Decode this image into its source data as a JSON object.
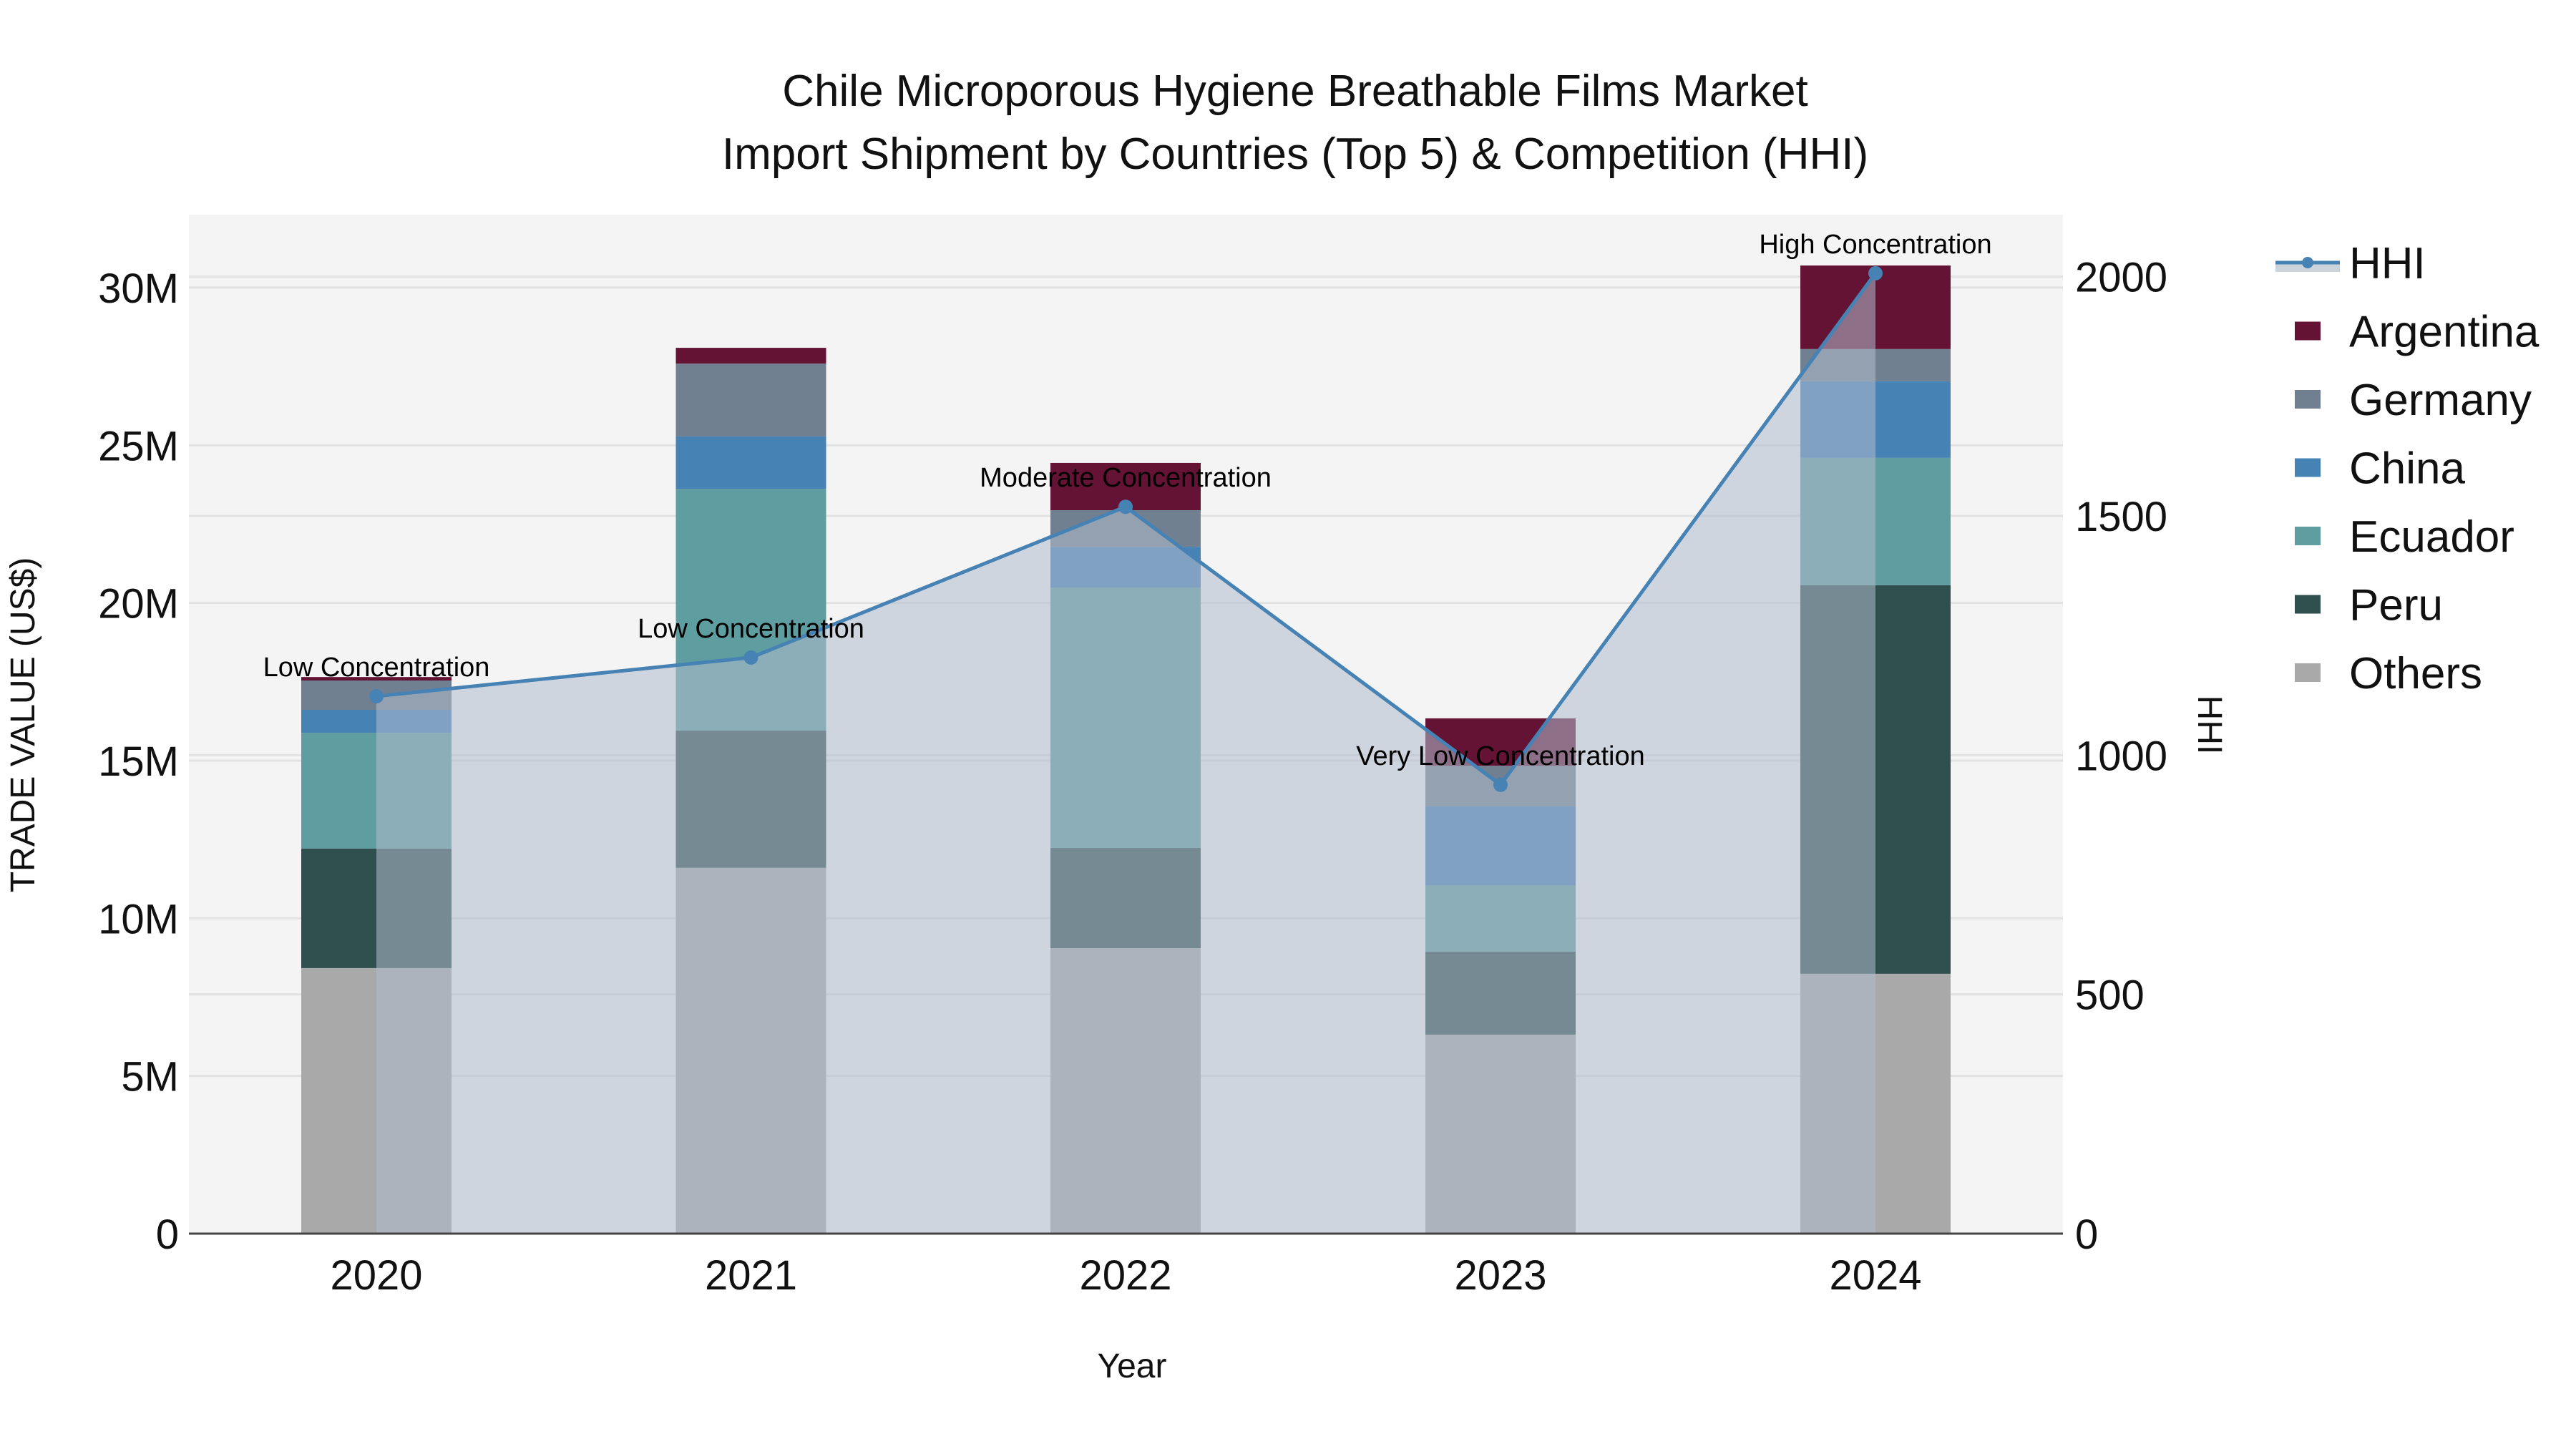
{
  "title": {
    "line1": "Chile Microporous Hygiene Breathable Films Market",
    "line2": "Import Shipment by Countries (Top 5) & Competition (HHI)"
  },
  "axes": {
    "x_title": "Year",
    "y_left_title": "TRADE VALUE (US$)",
    "y_right_title": "HHI",
    "y_left_ticks": [
      "0",
      "5M",
      "10M",
      "15M",
      "20M",
      "25M",
      "30M"
    ],
    "y_right_ticks": [
      "0",
      "500",
      "1000",
      "1500",
      "2000"
    ]
  },
  "legend": {
    "items": [
      {
        "label": "HHI",
        "type": "line",
        "color": "#4682b4"
      },
      {
        "label": "Argentina",
        "type": "bar",
        "color": "#641335"
      },
      {
        "label": "Germany",
        "type": "bar",
        "color": "#708090"
      },
      {
        "label": "China",
        "type": "bar",
        "color": "#4682b4"
      },
      {
        "label": "Ecuador",
        "type": "bar",
        "color": "#5f9ea0"
      },
      {
        "label": "Peru",
        "type": "bar",
        "color": "#2f4f4f"
      },
      {
        "label": "Others",
        "type": "bar",
        "color": "#a9a9a9"
      }
    ]
  },
  "colors": {
    "plot_bg": "#f4f4f4",
    "grid": "#e2e2e2",
    "hhi_line": "#4682b4",
    "hhi_fill": "rgba(176,188,204,0.55)"
  },
  "chart_data": {
    "type": "bar",
    "subtype": "stacked bar with secondary-axis line/area",
    "title": "Chile Microporous Hygiene Breathable Films Market — Import Shipment by Countries (Top 5) & Competition (HHI)",
    "xlabel": "Year",
    "ylabel": "TRADE VALUE (US$)",
    "y2label": "HHI",
    "categories": [
      "2020",
      "2021",
      "2022",
      "2023",
      "2024"
    ],
    "ylim": [
      0,
      32000000
    ],
    "y2lim": [
      0,
      2130
    ],
    "grid": true,
    "legend_position": "right",
    "series": [
      {
        "name": "Others",
        "color": "#a9a9a9",
        "values": [
          8420000,
          11600000,
          9050000,
          6310000,
          8240000
        ]
      },
      {
        "name": "Peru",
        "color": "#2f4f4f",
        "values": [
          3790000,
          4350000,
          3180000,
          2630000,
          12320000
        ]
      },
      {
        "name": "Ecuador",
        "color": "#5f9ea0",
        "values": [
          3670000,
          7670000,
          8260000,
          2110000,
          4040000
        ]
      },
      {
        "name": "China",
        "color": "#4682b4",
        "values": [
          730000,
          1660000,
          1290000,
          2500000,
          2430000
        ]
      },
      {
        "name": "Germany",
        "color": "#708090",
        "values": [
          930000,
          2310000,
          1160000,
          1290000,
          1020000
        ]
      },
      {
        "name": "Argentina",
        "color": "#641335",
        "values": [
          110000,
          500000,
          1500000,
          1500000,
          2650000
        ]
      }
    ],
    "line_series": {
      "name": "HHI",
      "axis": "right",
      "color": "#4682b4",
      "values": [
        1123,
        1204,
        1519,
        938,
        2007
      ]
    },
    "annotations": [
      {
        "x": "2020",
        "text": "Low Concentration"
      },
      {
        "x": "2021",
        "text": "Low Concentration"
      },
      {
        "x": "2022",
        "text": "Moderate Concentration"
      },
      {
        "x": "2023",
        "text": "Very Low Concentration"
      },
      {
        "x": "2024",
        "text": "High Concentration"
      }
    ]
  }
}
